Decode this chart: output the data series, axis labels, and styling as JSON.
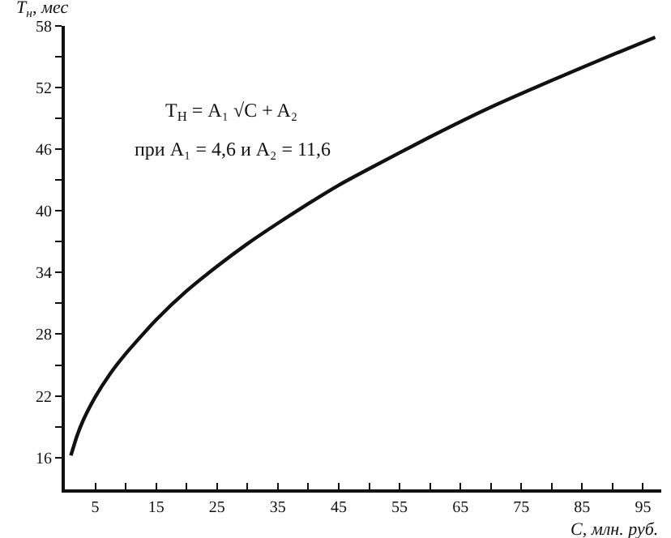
{
  "chart_data": {
    "type": "line",
    "xlabel": "C, млн. руб.",
    "ylabel": "T$_{н}$, мес",
    "annotations": [
      "T$_{Н}$ = A₁ √C + A₂",
      "при A₁ = 4,6 и A₂ = 11,6"
    ],
    "x": [
      1,
      2,
      3,
      5,
      7.5,
      10,
      15,
      20,
      25,
      30,
      35,
      40,
      45,
      50,
      60,
      70,
      80,
      90,
      97
    ],
    "series": [
      {
        "color": "#111111",
        "values": [
          16.2,
          18.1,
          19.6,
          21.9,
          24.2,
          26.1,
          29.4,
          32.2,
          34.6,
          36.8,
          38.8,
          40.7,
          42.5,
          44.1,
          47.2,
          50.1,
          52.7,
          55.2,
          56.9
        ]
      }
    ],
    "xlim": [
      0,
      98
    ],
    "xticks": [
      5,
      {
        "value": 10,
        "label": null
      },
      15,
      {
        "value": 20,
        "label": null
      },
      25,
      {
        "value": 30,
        "label": null
      },
      35,
      {
        "value": 40,
        "label": null
      },
      45,
      {
        "value": 50,
        "label": null
      },
      55,
      {
        "value": 60,
        "label": null
      },
      65,
      {
        "value": 70,
        "label": null
      },
      75,
      {
        "value": 80,
        "label": null
      },
      85,
      {
        "value": 90,
        "label": null
      },
      95
    ],
    "ylim": [
      12.9,
      58
    ],
    "yticks": [
      16,
      {
        "value": 19,
        "label": null
      },
      22,
      {
        "value": 25,
        "label": null
      },
      28,
      {
        "value": 31,
        "label": null
      },
      34,
      {
        "value": 37,
        "label": null
      },
      40,
      {
        "value": 43,
        "label": null
      },
      46,
      {
        "value": 49,
        "label": null
      },
      52,
      {
        "value": 55,
        "label": null
      },
      58
    ],
    "grid": false,
    "marker": "none",
    "line_style": "solid"
  }
}
